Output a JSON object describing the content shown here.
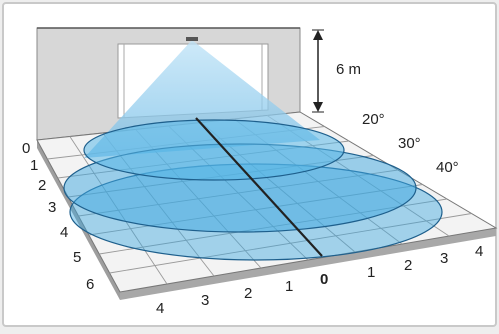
{
  "height_label": "6 m",
  "angle_labels": [
    "20°",
    "30°",
    "40°"
  ],
  "left_axis_labels": [
    "0",
    "1",
    "2",
    "3",
    "4",
    "5",
    "6"
  ],
  "front_left_labels": [
    "4",
    "3",
    "2",
    "1"
  ],
  "front_origin_label": "0",
  "front_right_labels": [
    "1",
    "2",
    "3",
    "4"
  ],
  "colors": {
    "frame_bg": "#ffffff",
    "wall": "#d9d9d9",
    "floor": "#f3f3f3",
    "beam": "#7fc4ea",
    "zone_fill": "#3fa8e0",
    "zone_stroke": "#1e5f8c",
    "dark_line": "#222222"
  },
  "icons": [
    "sensor-icon",
    "ruler-arrow-icon"
  ]
}
